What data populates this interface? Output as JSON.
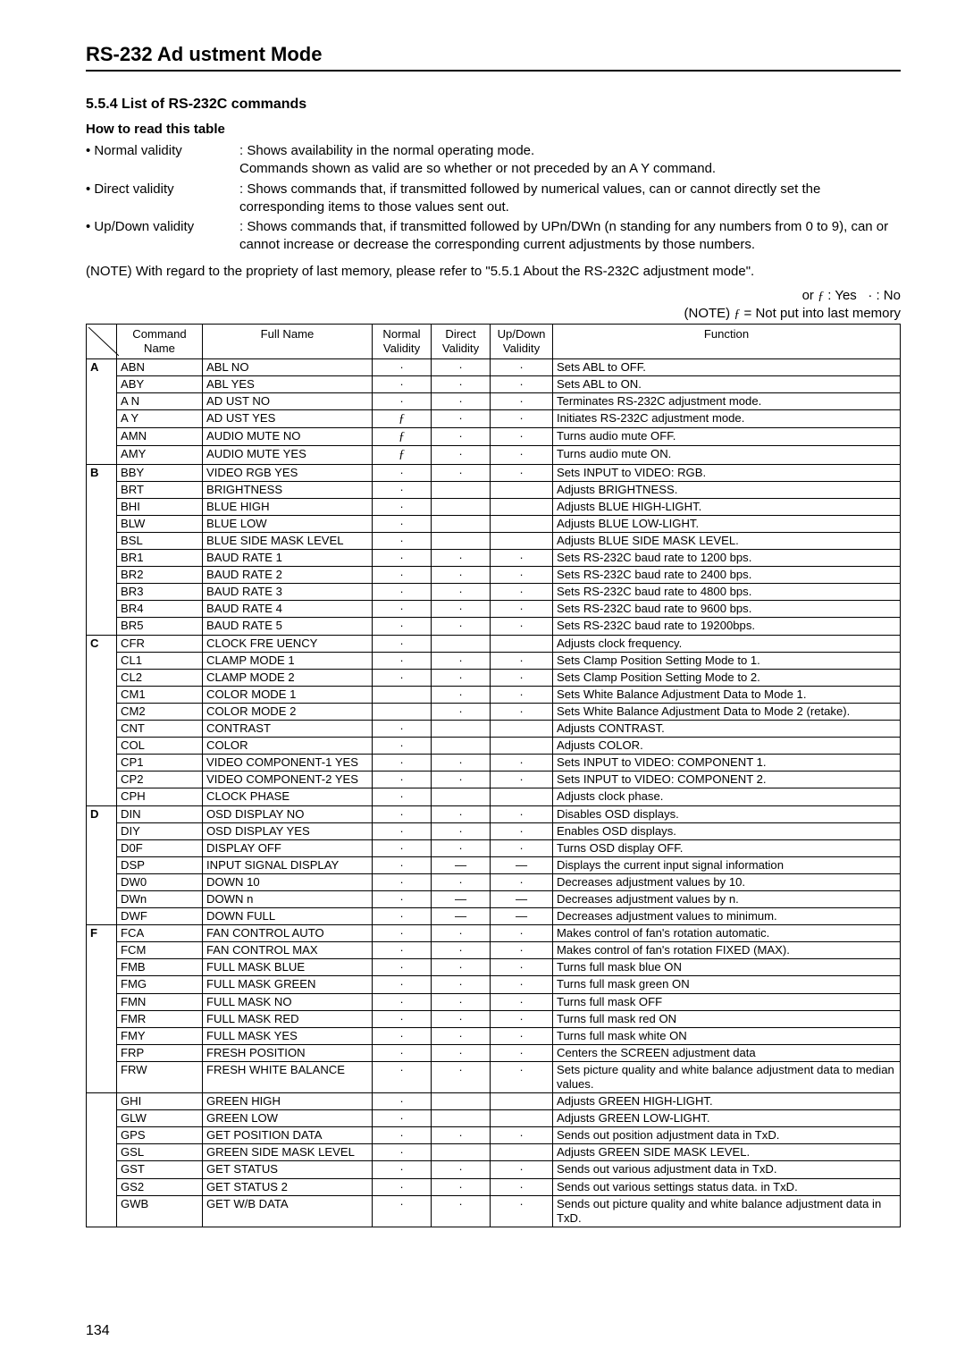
{
  "title": "RS-232 Ad ustment Mode",
  "section_head": "5.5.4 List of RS-232C commands",
  "howto_head": "How to read this table",
  "bullets": [
    {
      "label": "• Normal validity",
      "desc": ": Shows availability in the normal operating mode.\n  Commands shown as valid are so whether or not preceded by an  A Y  command."
    },
    {
      "label": "• Direct validity",
      "desc": ": Shows commands that, if transmitted followed by numerical values, can or cannot directly set the corresponding items to those values sent out."
    },
    {
      "label": "• Up/Down validity",
      "desc": ": Shows commands that, if transmitted followed by UPn/DWn (n standing for any numbers from 0 to 9), can or cannot increase or decrease the corresponding current adjustments by those numbers."
    }
  ],
  "note1": "(NOTE)  With regard to the propriety of last memory, please refer to \"5.5.1 About the RS-232C adjustment mode\".",
  "legend1": "or ƒ : Yes   · : No",
  "legend2": "(NOTE) ƒ = Not put into last memory",
  "headers": {
    "cmd": "Command\nName",
    "full": "Full Name",
    "norm": "Normal\nValidity",
    "dir": "Direct\nValidity",
    "ud": "Up/Down\nValidity",
    "func": "Function"
  },
  "groups": [
    {
      "letter": "A",
      "rows": [
        {
          "cmd": "ABN",
          "full": "ABL NO",
          "n": "·",
          "d": "·",
          "u": "·",
          "func": "Sets ABL to OFF."
        },
        {
          "cmd": "ABY",
          "full": "ABL YES",
          "n": "·",
          "d": "·",
          "u": "·",
          "func": "Sets ABL to ON."
        },
        {
          "cmd": "A N",
          "full": "AD UST NO",
          "n": "·",
          "d": "·",
          "u": "·",
          "func": "Terminates RS-232C adjustment mode."
        },
        {
          "cmd": "A Y",
          "full": "AD UST YES",
          "n": "ƒ",
          "d": "·",
          "u": "·",
          "func": "Initiates RS-232C adjustment mode."
        },
        {
          "cmd": "AMN",
          "full": "AUDIO MUTE NO",
          "n": "ƒ",
          "d": "·",
          "u": "·",
          "func": "Turns audio mute OFF."
        },
        {
          "cmd": "AMY",
          "full": "AUDIO MUTE YES",
          "n": "ƒ",
          "d": "·",
          "u": "·",
          "func": "Turns audio mute ON."
        }
      ]
    },
    {
      "letter": "B",
      "rows": [
        {
          "cmd": "BBY",
          "full": "VIDEO RGB YES",
          "n": "·",
          "d": "·",
          "u": "·",
          "func": "Sets INPUT to VIDEO: RGB."
        },
        {
          "cmd": "BRT",
          "full": "BRIGHTNESS",
          "n": "·",
          "d": "",
          "u": "",
          "func": "Adjusts BRIGHTNESS."
        },
        {
          "cmd": "BHI",
          "full": "BLUE HIGH",
          "n": "·",
          "d": "",
          "u": "",
          "func": "Adjusts BLUE HIGH-LIGHT."
        },
        {
          "cmd": "BLW",
          "full": "BLUE LOW",
          "n": "·",
          "d": "",
          "u": "",
          "func": "Adjusts BLUE LOW-LIGHT."
        },
        {
          "cmd": "BSL",
          "full": "BLUE SIDE MASK LEVEL",
          "n": "·",
          "d": "",
          "u": "",
          "func": "Adjusts BLUE SIDE MASK LEVEL."
        },
        {
          "cmd": "BR1",
          "full": "BAUD RATE 1",
          "n": "·",
          "d": "·",
          "u": "·",
          "func": "Sets RS-232C baud rate to 1200 bps."
        },
        {
          "cmd": "BR2",
          "full": "BAUD RATE 2",
          "n": "·",
          "d": "·",
          "u": "·",
          "func": "Sets RS-232C baud rate to 2400 bps."
        },
        {
          "cmd": "BR3",
          "full": "BAUD RATE 3",
          "n": "·",
          "d": "·",
          "u": "·",
          "func": "Sets RS-232C baud rate to 4800 bps."
        },
        {
          "cmd": "BR4",
          "full": "BAUD RATE 4",
          "n": "·",
          "d": "·",
          "u": "·",
          "func": "Sets RS-232C baud rate to 9600 bps."
        },
        {
          "cmd": "BR5",
          "full": "BAUD RATE 5",
          "n": "·",
          "d": "·",
          "u": "·",
          "func": "Sets RS-232C baud rate to 19200bps."
        }
      ]
    },
    {
      "letter": "C",
      "rows": [
        {
          "cmd": "CFR",
          "full": "CLOCK FRE UENCY",
          "n": "·",
          "d": "",
          "u": "",
          "func": "Adjusts clock frequency."
        },
        {
          "cmd": "CL1",
          "full": "CLAMP MODE 1",
          "n": "·",
          "d": "·",
          "u": "·",
          "func": "Sets Clamp Position Setting Mode to 1."
        },
        {
          "cmd": "CL2",
          "full": "CLAMP MODE 2",
          "n": "·",
          "d": "·",
          "u": "·",
          "func": "Sets Clamp Position Setting Mode to 2."
        },
        {
          "cmd": "CM1",
          "full": "COLOR MODE 1",
          "n": "",
          "d": "·",
          "u": "·",
          "func": "Sets White Balance Adjustment Data to Mode 1."
        },
        {
          "cmd": "CM2",
          "full": "COLOR MODE 2",
          "n": "",
          "d": "·",
          "u": "·",
          "func": "Sets White Balance Adjustment Data to Mode 2 (retake)."
        },
        {
          "cmd": "CNT",
          "full": "CONTRAST",
          "n": "·",
          "d": "",
          "u": "",
          "func": "Adjusts CONTRAST."
        },
        {
          "cmd": "COL",
          "full": "COLOR",
          "n": "·",
          "d": "",
          "u": "",
          "func": "Adjusts COLOR."
        },
        {
          "cmd": "CP1",
          "full": "VIDEO COMPONENT-1 YES",
          "n": "·",
          "d": "·",
          "u": "·",
          "func": "Sets INPUT to VIDEO: COMPONENT 1."
        },
        {
          "cmd": "CP2",
          "full": "VIDEO COMPONENT-2 YES",
          "n": "·",
          "d": "·",
          "u": "·",
          "func": "Sets INPUT to VIDEO: COMPONENT 2."
        },
        {
          "cmd": "CPH",
          "full": "CLOCK PHASE",
          "n": "·",
          "d": "",
          "u": "",
          "func": "Adjusts clock phase."
        }
      ]
    },
    {
      "letter": "D",
      "rows": [
        {
          "cmd": "DIN",
          "full": "OSD DISPLAY NO",
          "n": "·",
          "d": "·",
          "u": "·",
          "func": "Disables OSD displays."
        },
        {
          "cmd": "DIY",
          "full": "OSD DISPLAY YES",
          "n": "·",
          "d": "·",
          "u": "·",
          "func": "Enables OSD displays."
        },
        {
          "cmd": "D0F",
          "full": "DISPLAY OFF",
          "n": "·",
          "d": "·",
          "u": "·",
          "func": "Turns OSD display OFF."
        },
        {
          "cmd": "DSP",
          "full": "INPUT SIGNAL DISPLAY",
          "n": "·",
          "d": "—",
          "u": "—",
          "func": "Displays the current input signal information"
        },
        {
          "cmd": "DW0",
          "full": "DOWN 10",
          "n": "·",
          "d": "·",
          "u": "·",
          "func": "Decreases adjustment values by 10."
        },
        {
          "cmd": "DWn",
          "full": "DOWN n",
          "n": "·",
          "d": "—",
          "u": "—",
          "func": "Decreases adjustment values by n."
        },
        {
          "cmd": "DWF",
          "full": "DOWN FULL",
          "n": "·",
          "d": "—",
          "u": "—",
          "func": "Decreases adjustment values to minimum."
        }
      ]
    },
    {
      "letter": "F",
      "rows": [
        {
          "cmd": "FCA",
          "full": "FAN CONTROL AUTO",
          "n": "·",
          "d": "·",
          "u": "·",
          "func": "Makes control of fan's rotation automatic."
        },
        {
          "cmd": "FCM",
          "full": "FAN CONTROL MAX",
          "n": "·",
          "d": "·",
          "u": "·",
          "func": "Makes control of fan's rotation FIXED (MAX)."
        },
        {
          "cmd": "FMB",
          "full": "FULL MASK BLUE",
          "n": "·",
          "d": "·",
          "u": "·",
          "func": "Turns full mask blue ON"
        },
        {
          "cmd": "FMG",
          "full": "FULL MASK GREEN",
          "n": "·",
          "d": "·",
          "u": "·",
          "func": "Turns full mask green ON"
        },
        {
          "cmd": "FMN",
          "full": "FULL MASK NO",
          "n": "·",
          "d": "·",
          "u": "·",
          "func": "Turns full mask OFF"
        },
        {
          "cmd": "FMR",
          "full": "FULL MASK RED",
          "n": "·",
          "d": "·",
          "u": "·",
          "func": "Turns full mask red ON"
        },
        {
          "cmd": "FMY",
          "full": "FULL MASK YES",
          "n": "·",
          "d": "·",
          "u": "·",
          "func": "Turns full mask white ON"
        },
        {
          "cmd": "FRP",
          "full": "FRESH POSITION",
          "n": "·",
          "d": "·",
          "u": "·",
          "func": "Centers the SCREEN adjustment data"
        },
        {
          "cmd": "FRW",
          "full": "FRESH WHITE BALANCE",
          "n": "·",
          "d": "·",
          "u": "·",
          "func": "Sets picture quality and white balance adjustment data to median values."
        }
      ]
    },
    {
      "letter": "",
      "rows": [
        {
          "cmd": "GHI",
          "full": "GREEN HIGH",
          "n": "·",
          "d": "",
          "u": "",
          "func": "Adjusts GREEN HIGH-LIGHT."
        },
        {
          "cmd": "GLW",
          "full": "GREEN LOW",
          "n": "·",
          "d": "",
          "u": "",
          "func": "Adjusts GREEN LOW-LIGHT."
        },
        {
          "cmd": "GPS",
          "full": "GET POSITION DATA",
          "n": "·",
          "d": "·",
          "u": "·",
          "func": "Sends out position adjustment data in TxD."
        },
        {
          "cmd": "GSL",
          "full": "GREEN SIDE MASK LEVEL",
          "n": "·",
          "d": "",
          "u": "",
          "func": "Adjusts GREEN SIDE MASK LEVEL."
        },
        {
          "cmd": "GST",
          "full": "GET STATUS",
          "n": "·",
          "d": "·",
          "u": "·",
          "func": "Sends out various adjustment data in TxD."
        },
        {
          "cmd": "GS2",
          "full": "GET STATUS 2",
          "n": "·",
          "d": "·",
          "u": "·",
          "func": "Sends out various settings status data. in TxD."
        },
        {
          "cmd": "GWB",
          "full": "GET W/B DATA",
          "n": "·",
          "d": "·",
          "u": "·",
          "func": "Sends out picture quality and white balance adjustment data in TxD."
        }
      ]
    }
  ],
  "pagenum": "134"
}
